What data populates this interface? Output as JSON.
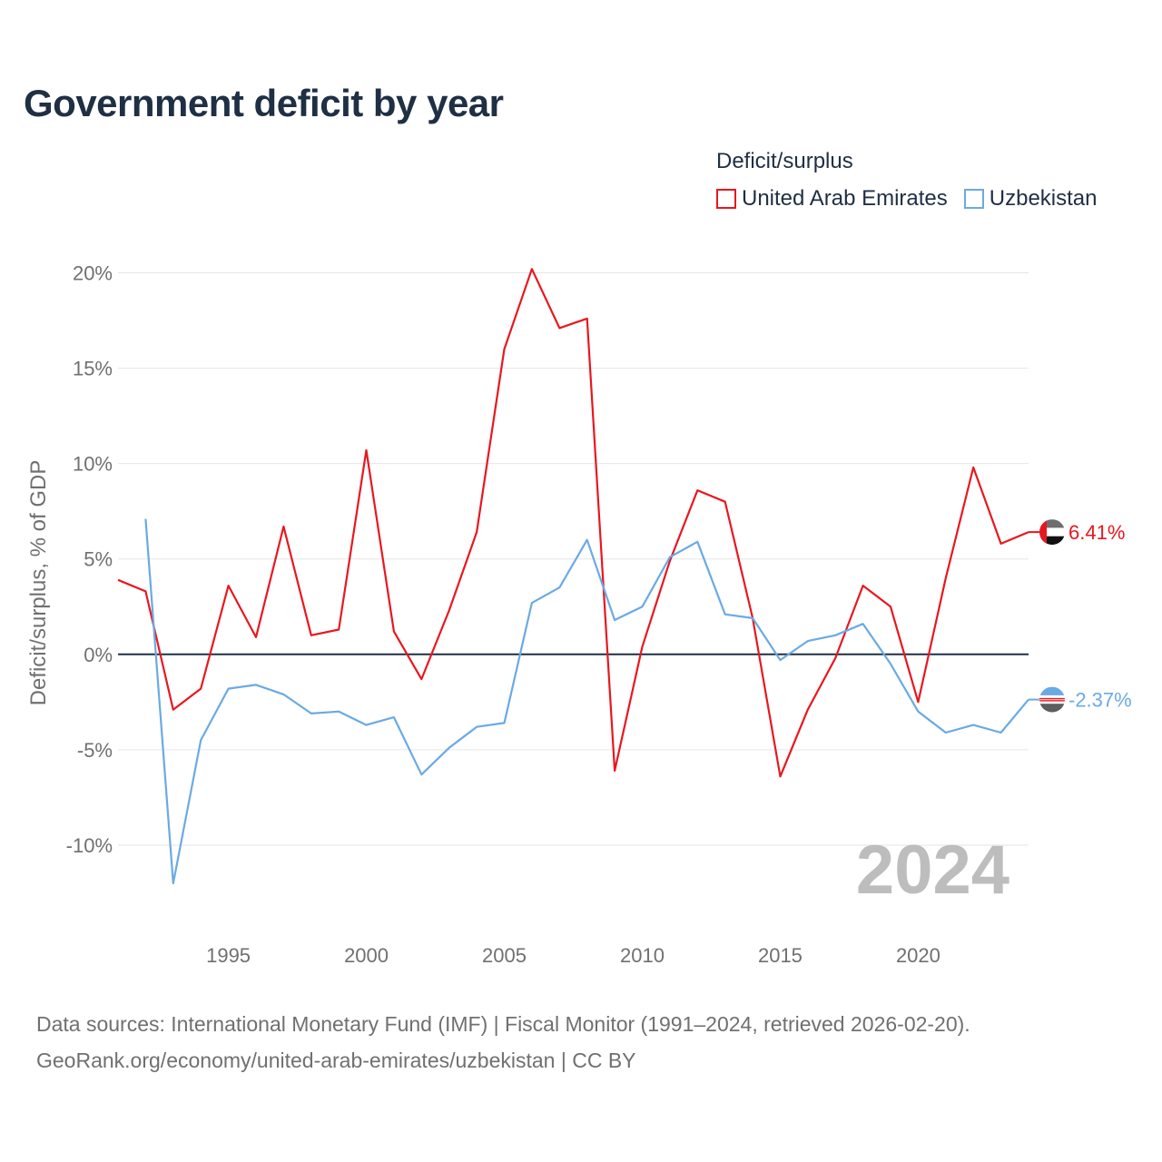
{
  "header": {
    "title": "Government deficit by year"
  },
  "legend": {
    "title": "Deficit/surplus"
  },
  "footer": {
    "line1": "Data sources: International Monetary Fund (IMF) | Fiscal Monitor (1991–2024, retrieved 2026-02-20).",
    "line2": "GeoRank.org/economy/united-arab-emirates/uzbekistan | CC BY"
  },
  "chart_data": {
    "type": "line",
    "title": "Government deficit by year",
    "xlabel": "",
    "ylabel": "Deficit/surplus, % of GDP",
    "xlim": [
      1991,
      2024
    ],
    "ylim": [
      -14,
      20.5
    ],
    "yticks": [
      20,
      15,
      10,
      5,
      0,
      -5,
      -10
    ],
    "ytick_labels": [
      "20%",
      "15%",
      "10%",
      "5%",
      "0%",
      "-5%",
      "-10%"
    ],
    "xticks": [
      1995,
      2000,
      2005,
      2010,
      2015,
      2020
    ],
    "xtick_labels": [
      "1995",
      "2000",
      "2005",
      "2010",
      "2015",
      "2020"
    ],
    "watermark_year": "2024",
    "grid": true,
    "legend_position": "top-right",
    "series": [
      {
        "name": "United Arab Emirates",
        "color": "#e8171f",
        "end_label": "6.41%",
        "flag_icon": "uae-flag-icon",
        "x": [
          1991,
          1992,
          1993,
          1994,
          1995,
          1996,
          1997,
          1998,
          1999,
          2000,
          2001,
          2002,
          2003,
          2004,
          2005,
          2006,
          2007,
          2008,
          2009,
          2010,
          2011,
          2012,
          2013,
          2014,
          2015,
          2016,
          2017,
          2018,
          2019,
          2020,
          2021,
          2022,
          2023,
          2024
        ],
        "values": [
          3.9,
          3.3,
          -2.9,
          -1.8,
          3.6,
          0.9,
          6.7,
          1.0,
          1.3,
          10.7,
          1.2,
          -1.3,
          2.3,
          6.4,
          16.0,
          20.2,
          17.1,
          17.6,
          -6.1,
          0.4,
          4.9,
          8.6,
          8.0,
          1.9,
          -6.4,
          -2.9,
          -0.2,
          3.6,
          2.5,
          -2.5,
          4.0,
          9.8,
          5.8,
          6.41
        ]
      },
      {
        "name": "Uzbekistan",
        "color": "#6aaae4",
        "end_label": "-2.37%",
        "flag_icon": "uzbekistan-flag-icon",
        "x": [
          1992,
          1993,
          1994,
          1995,
          1996,
          1997,
          1998,
          1999,
          2000,
          2001,
          2002,
          2003,
          2004,
          2005,
          2006,
          2007,
          2008,
          2009,
          2010,
          2011,
          2012,
          2013,
          2014,
          2015,
          2016,
          2017,
          2018,
          2019,
          2020,
          2021,
          2022,
          2023,
          2024
        ],
        "values": [
          7.1,
          -12.0,
          -4.5,
          -1.8,
          -1.6,
          -2.1,
          -3.1,
          -3.0,
          -3.7,
          -3.3,
          -6.3,
          -4.9,
          -3.8,
          -3.6,
          2.7,
          3.5,
          6.0,
          1.8,
          2.5,
          5.1,
          5.9,
          2.1,
          1.9,
          -0.3,
          0.7,
          1.0,
          1.6,
          -0.5,
          -3.0,
          -4.1,
          -3.7,
          -4.1,
          -2.37
        ]
      }
    ]
  }
}
